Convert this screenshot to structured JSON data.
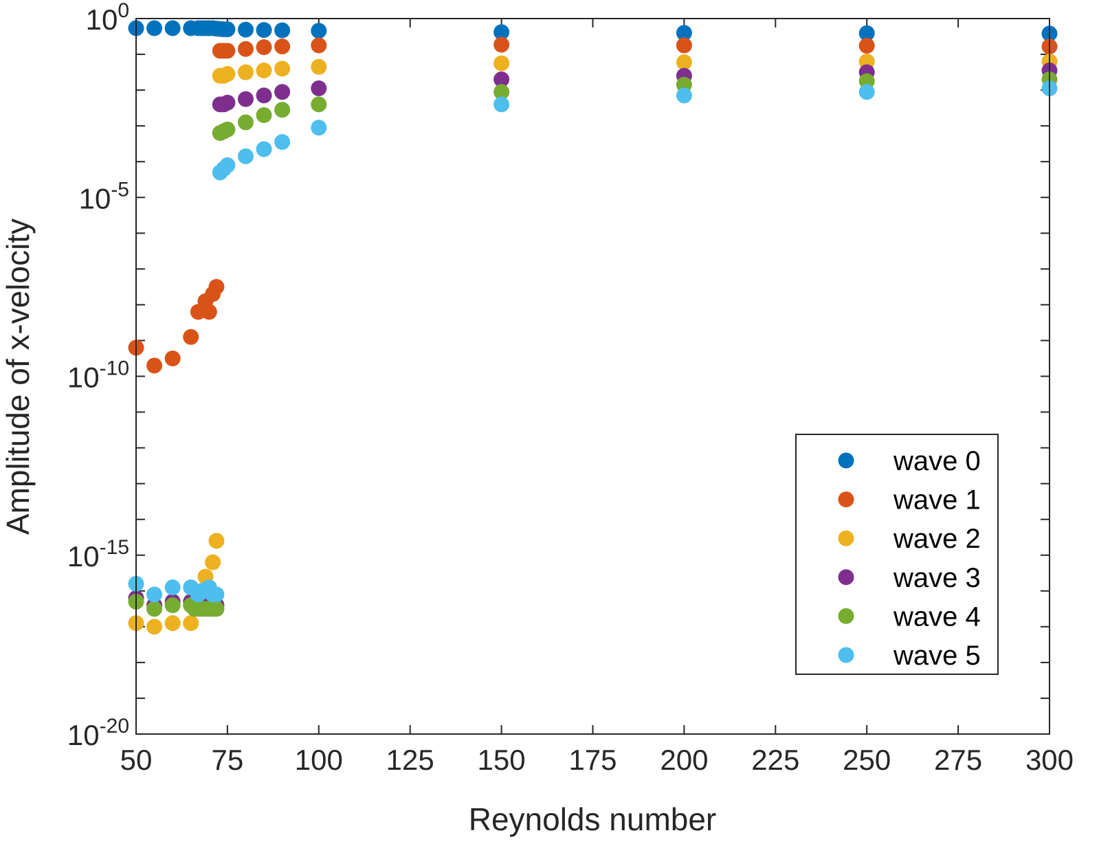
{
  "chart_data": {
    "type": "scatter",
    "xlabel": "Reynolds number",
    "ylabel": "Amplitude of x-velocity",
    "xlim": [
      50,
      300
    ],
    "ylim_exponent": [
      -20,
      0
    ],
    "yscale": "log",
    "x_ticks": [
      "50",
      "75",
      "100",
      "125",
      "150",
      "175",
      "200",
      "225",
      "250",
      "275",
      "300"
    ],
    "y_ticks": [
      {
        "base": "10",
        "exp": "0",
        "value_exp": 0
      },
      {
        "base": "10",
        "exp": "-5",
        "value_exp": -5
      },
      {
        "base": "10",
        "exp": "-10",
        "value_exp": -10
      },
      {
        "base": "10",
        "exp": "-15",
        "value_exp": -15
      },
      {
        "base": "10",
        "exp": "-20",
        "value_exp": -20
      }
    ],
    "legend": {
      "position": "lower-right",
      "entries": [
        "wave 0",
        "wave 1",
        "wave 2",
        "wave 3",
        "wave 4",
        "wave 5"
      ]
    },
    "series": [
      {
        "name": "wave 0",
        "color": "#0072BD",
        "x": [
          50,
          55,
          60,
          65,
          67,
          68,
          69,
          70,
          71,
          72,
          73,
          74,
          75,
          80,
          85,
          90,
          100,
          150,
          200,
          250,
          300
        ],
        "log10_y": [
          -0.27,
          -0.27,
          -0.27,
          -0.27,
          -0.27,
          -0.27,
          -0.27,
          -0.27,
          -0.27,
          -0.28,
          -0.29,
          -0.3,
          -0.3,
          -0.31,
          -0.32,
          -0.33,
          -0.34,
          -0.38,
          -0.4,
          -0.41,
          -0.42
        ]
      },
      {
        "name": "wave 1",
        "color": "#D95319",
        "x": [
          50,
          55,
          60,
          65,
          67,
          69,
          70,
          71,
          72,
          73,
          74,
          75,
          80,
          85,
          90,
          100,
          150,
          200,
          250,
          300
        ],
        "log10_y": [
          -9.2,
          -9.7,
          -9.5,
          -8.9,
          -8.2,
          -7.9,
          -8.2,
          -7.7,
          -7.5,
          -0.9,
          -0.9,
          -0.9,
          -0.85,
          -0.8,
          -0.78,
          -0.75,
          -0.73,
          -0.75,
          -0.76,
          -0.78
        ]
      },
      {
        "name": "wave 2",
        "color": "#EDB120",
        "x": [
          50,
          55,
          60,
          65,
          69,
          71,
          72,
          73,
          74,
          75,
          80,
          85,
          90,
          100,
          150,
          200,
          250,
          300
        ],
        "log10_y": [
          -16.9,
          -17.0,
          -16.9,
          -16.9,
          -15.6,
          -15.2,
          -14.6,
          -1.6,
          -1.6,
          -1.55,
          -1.5,
          -1.45,
          -1.4,
          -1.35,
          -1.25,
          -1.22,
          -1.2,
          -1.2
        ]
      },
      {
        "name": "wave 3",
        "color": "#7E2F8E",
        "x": [
          50,
          55,
          60,
          65,
          70,
          72,
          73,
          74,
          75,
          80,
          85,
          90,
          100,
          150,
          200,
          250,
          300
        ],
        "log10_y": [
          -16.2,
          -16.4,
          -16.3,
          -16.3,
          -16.3,
          -16.4,
          -2.4,
          -2.4,
          -2.35,
          -2.25,
          -2.15,
          -2.05,
          -1.95,
          -1.7,
          -1.6,
          -1.5,
          -1.45
        ]
      },
      {
        "name": "wave 4",
        "color": "#77AC30",
        "x": [
          50,
          55,
          60,
          65,
          66,
          67,
          68,
          69,
          70,
          71,
          72,
          73,
          74,
          75,
          80,
          85,
          90,
          100,
          150,
          200,
          250,
          300
        ],
        "log10_y": [
          -16.3,
          -16.5,
          -16.4,
          -16.4,
          -16.5,
          -16.5,
          -16.5,
          -16.5,
          -16.5,
          -16.5,
          -16.5,
          -3.2,
          -3.15,
          -3.1,
          -2.9,
          -2.7,
          -2.55,
          -2.4,
          -2.05,
          -1.85,
          -1.75,
          -1.7
        ]
      },
      {
        "name": "wave 5",
        "color": "#4DBEEE",
        "x": [
          50,
          55,
          60,
          65,
          67,
          68,
          69,
          70,
          71,
          72,
          73,
          74,
          75,
          80,
          85,
          90,
          100,
          150,
          200,
          250,
          300
        ],
        "log10_y": [
          -15.8,
          -16.1,
          -15.9,
          -15.9,
          -16.1,
          -16.0,
          -16.0,
          -15.9,
          -16.1,
          -16.1,
          -4.3,
          -4.2,
          -4.1,
          -3.85,
          -3.65,
          -3.45,
          -3.05,
          -2.4,
          -2.15,
          -2.05,
          -1.95
        ]
      }
    ]
  }
}
